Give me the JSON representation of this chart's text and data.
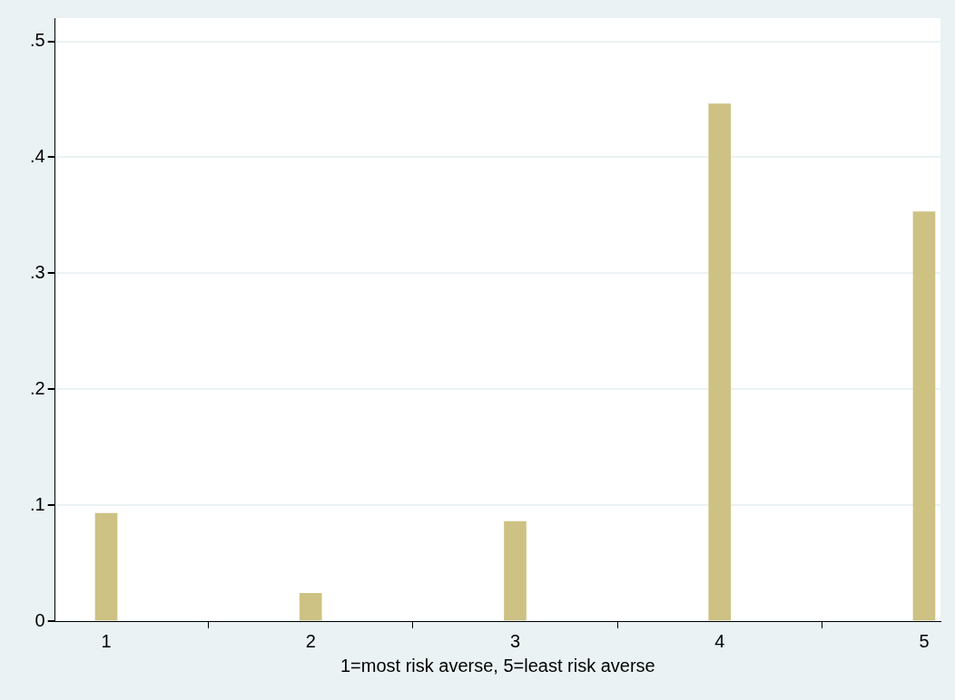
{
  "chart_data": {
    "type": "bar",
    "xlabel": "1=most risk averse, 5=least risk averse",
    "x": [
      1,
      2,
      3,
      4,
      5
    ],
    "values": [
      0.093,
      0.024,
      0.086,
      0.446,
      0.353
    ],
    "color": "#cdc283",
    "xlim": [
      0.75,
      5.08
    ],
    "xticks": [
      1,
      2,
      3,
      4,
      5
    ],
    "ylim": [
      0,
      0.52
    ],
    "yticks": [
      0,
      {
        "value": 0.1,
        "label": ".1"
      },
      {
        "value": 0.2,
        "label": ".2"
      },
      {
        "value": 0.3,
        "label": ".3"
      },
      {
        "value": 0.4,
        "label": ".4"
      },
      {
        "value": 0.5,
        "label": ".5"
      }
    ],
    "grid": "y",
    "legend": false
  }
}
